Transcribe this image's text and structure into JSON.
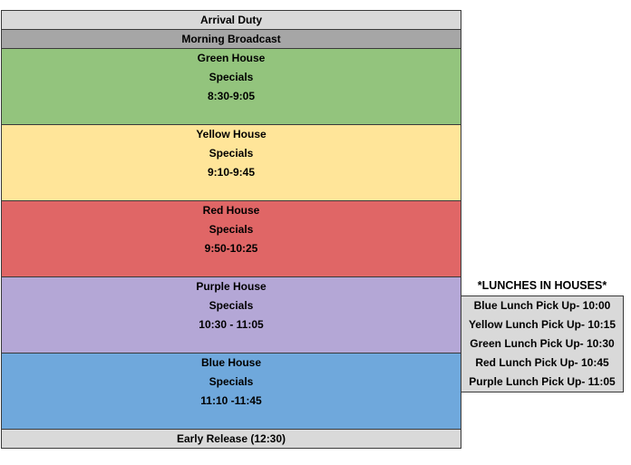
{
  "schedule": {
    "arrival": {
      "label": "Arrival Duty",
      "color": "#d9d9d9"
    },
    "broadcast": {
      "label": "Morning Broadcast",
      "color": "#a6a6a6"
    },
    "houses": [
      {
        "name": "Green House",
        "activity": "Specials",
        "time": "8:30-9:05",
        "color": "#93c47d"
      },
      {
        "name": "Yellow House",
        "activity": "Specials",
        "time": "9:10-9:45",
        "color": "#ffe599"
      },
      {
        "name": "Red House",
        "activity": "Specials",
        "time": "9:50-10:25",
        "color": "#e06666"
      },
      {
        "name": "Purple House",
        "activity": "Specials",
        "time": "10:30 - 11:05",
        "color": "#b4a7d6"
      },
      {
        "name": "Blue House",
        "activity": "Specials",
        "time": "11:10 -11:45",
        "color": "#6fa8dc"
      }
    ],
    "release": {
      "label": "Early Release (12:30)",
      "color": "#d9d9d9"
    }
  },
  "lunches": {
    "title": "*LUNCHES IN HOUSES*",
    "items": [
      "Blue Lunch Pick Up- 10:00",
      "Yellow Lunch Pick Up- 10:15",
      "Green Lunch Pick Up- 10:30",
      "Red Lunch Pick Up- 10:45",
      "Purple Lunch Pick Up- 11:05"
    ]
  }
}
